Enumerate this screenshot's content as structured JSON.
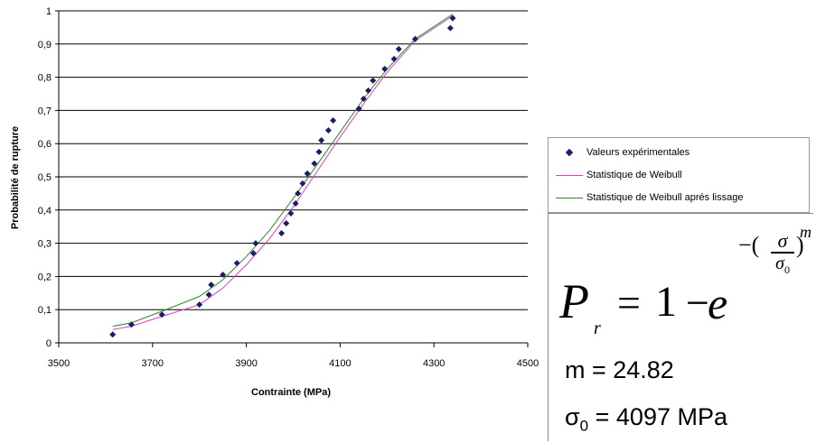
{
  "chart_data": {
    "type": "scatter",
    "xlabel": "Contrainte (MPa)",
    "ylabel": "Probabilité de rupture",
    "xlim": [
      3500,
      4500
    ],
    "ylim": [
      0,
      1
    ],
    "x_ticks": [
      "3500",
      "3700",
      "3900",
      "4100",
      "4300",
      "4500"
    ],
    "y_ticks": [
      "0",
      "0,1",
      "0,2",
      "0,3",
      "0,4",
      "0,5",
      "0,6",
      "0,7",
      "0,8",
      "0,9",
      "1"
    ],
    "grid": "horizontal",
    "legend_position": "right",
    "series": [
      {
        "name": "Valeurs expérimentales",
        "kind": "scatter",
        "color": "#1c1c6b",
        "points": [
          [
            3615,
            0.025
          ],
          [
            3655,
            0.055
          ],
          [
            3720,
            0.085
          ],
          [
            3800,
            0.115
          ],
          [
            3820,
            0.145
          ],
          [
            3825,
            0.175
          ],
          [
            3850,
            0.205
          ],
          [
            3880,
            0.24
          ],
          [
            3915,
            0.27
          ],
          [
            3920,
            0.3
          ],
          [
            3975,
            0.33
          ],
          [
            3985,
            0.36
          ],
          [
            3995,
            0.39
          ],
          [
            4005,
            0.42
          ],
          [
            4010,
            0.45
          ],
          [
            4020,
            0.48
          ],
          [
            4030,
            0.51
          ],
          [
            4045,
            0.54
          ],
          [
            4055,
            0.575
          ],
          [
            4060,
            0.61
          ],
          [
            4075,
            0.64
          ],
          [
            4085,
            0.67
          ],
          [
            4140,
            0.705
          ],
          [
            4150,
            0.735
          ],
          [
            4160,
            0.76
          ],
          [
            4170,
            0.79
          ],
          [
            4195,
            0.825
          ],
          [
            4215,
            0.855
          ],
          [
            4225,
            0.885
          ],
          [
            4260,
            0.915
          ],
          [
            4335,
            0.948
          ],
          [
            4340,
            0.978
          ]
        ]
      },
      {
        "name": "Statistique de Weibull",
        "kind": "line",
        "color": "#e040c0",
        "points": [
          [
            3615,
            0.04
          ],
          [
            3655,
            0.05
          ],
          [
            3720,
            0.08
          ],
          [
            3800,
            0.115
          ],
          [
            3850,
            0.165
          ],
          [
            3900,
            0.235
          ],
          [
            3950,
            0.315
          ],
          [
            4000,
            0.41
          ],
          [
            4050,
            0.515
          ],
          [
            4100,
            0.62
          ],
          [
            4150,
            0.72
          ],
          [
            4200,
            0.815
          ],
          [
            4260,
            0.91
          ],
          [
            4340,
            0.985
          ]
        ]
      },
      {
        "name": "Statistique de Weibull aprés lissage",
        "kind": "line",
        "color": "#2a8a2a",
        "points": [
          [
            3615,
            0.05
          ],
          [
            3655,
            0.06
          ],
          [
            3720,
            0.095
          ],
          [
            3800,
            0.14
          ],
          [
            3850,
            0.19
          ],
          [
            3900,
            0.26
          ],
          [
            3950,
            0.34
          ],
          [
            4000,
            0.435
          ],
          [
            4050,
            0.535
          ],
          [
            4100,
            0.635
          ],
          [
            4150,
            0.735
          ],
          [
            4200,
            0.825
          ],
          [
            4260,
            0.915
          ],
          [
            4340,
            0.99
          ]
        ]
      }
    ]
  },
  "formula": {
    "P": "P",
    "r": "r",
    "eq": "=",
    "one": "1",
    "minus": "−",
    "e": "e",
    "exp_open": "−(",
    "sigma": "σ",
    "sigma0": "σ",
    "sigma0_sub": "0",
    "exp_close": ")",
    "m": "m"
  },
  "params": {
    "m_text": "m = 24.82",
    "sigma_symbol": "σ",
    "sigma_sub": "0",
    "sigma_value": " = 4097 MPa"
  }
}
